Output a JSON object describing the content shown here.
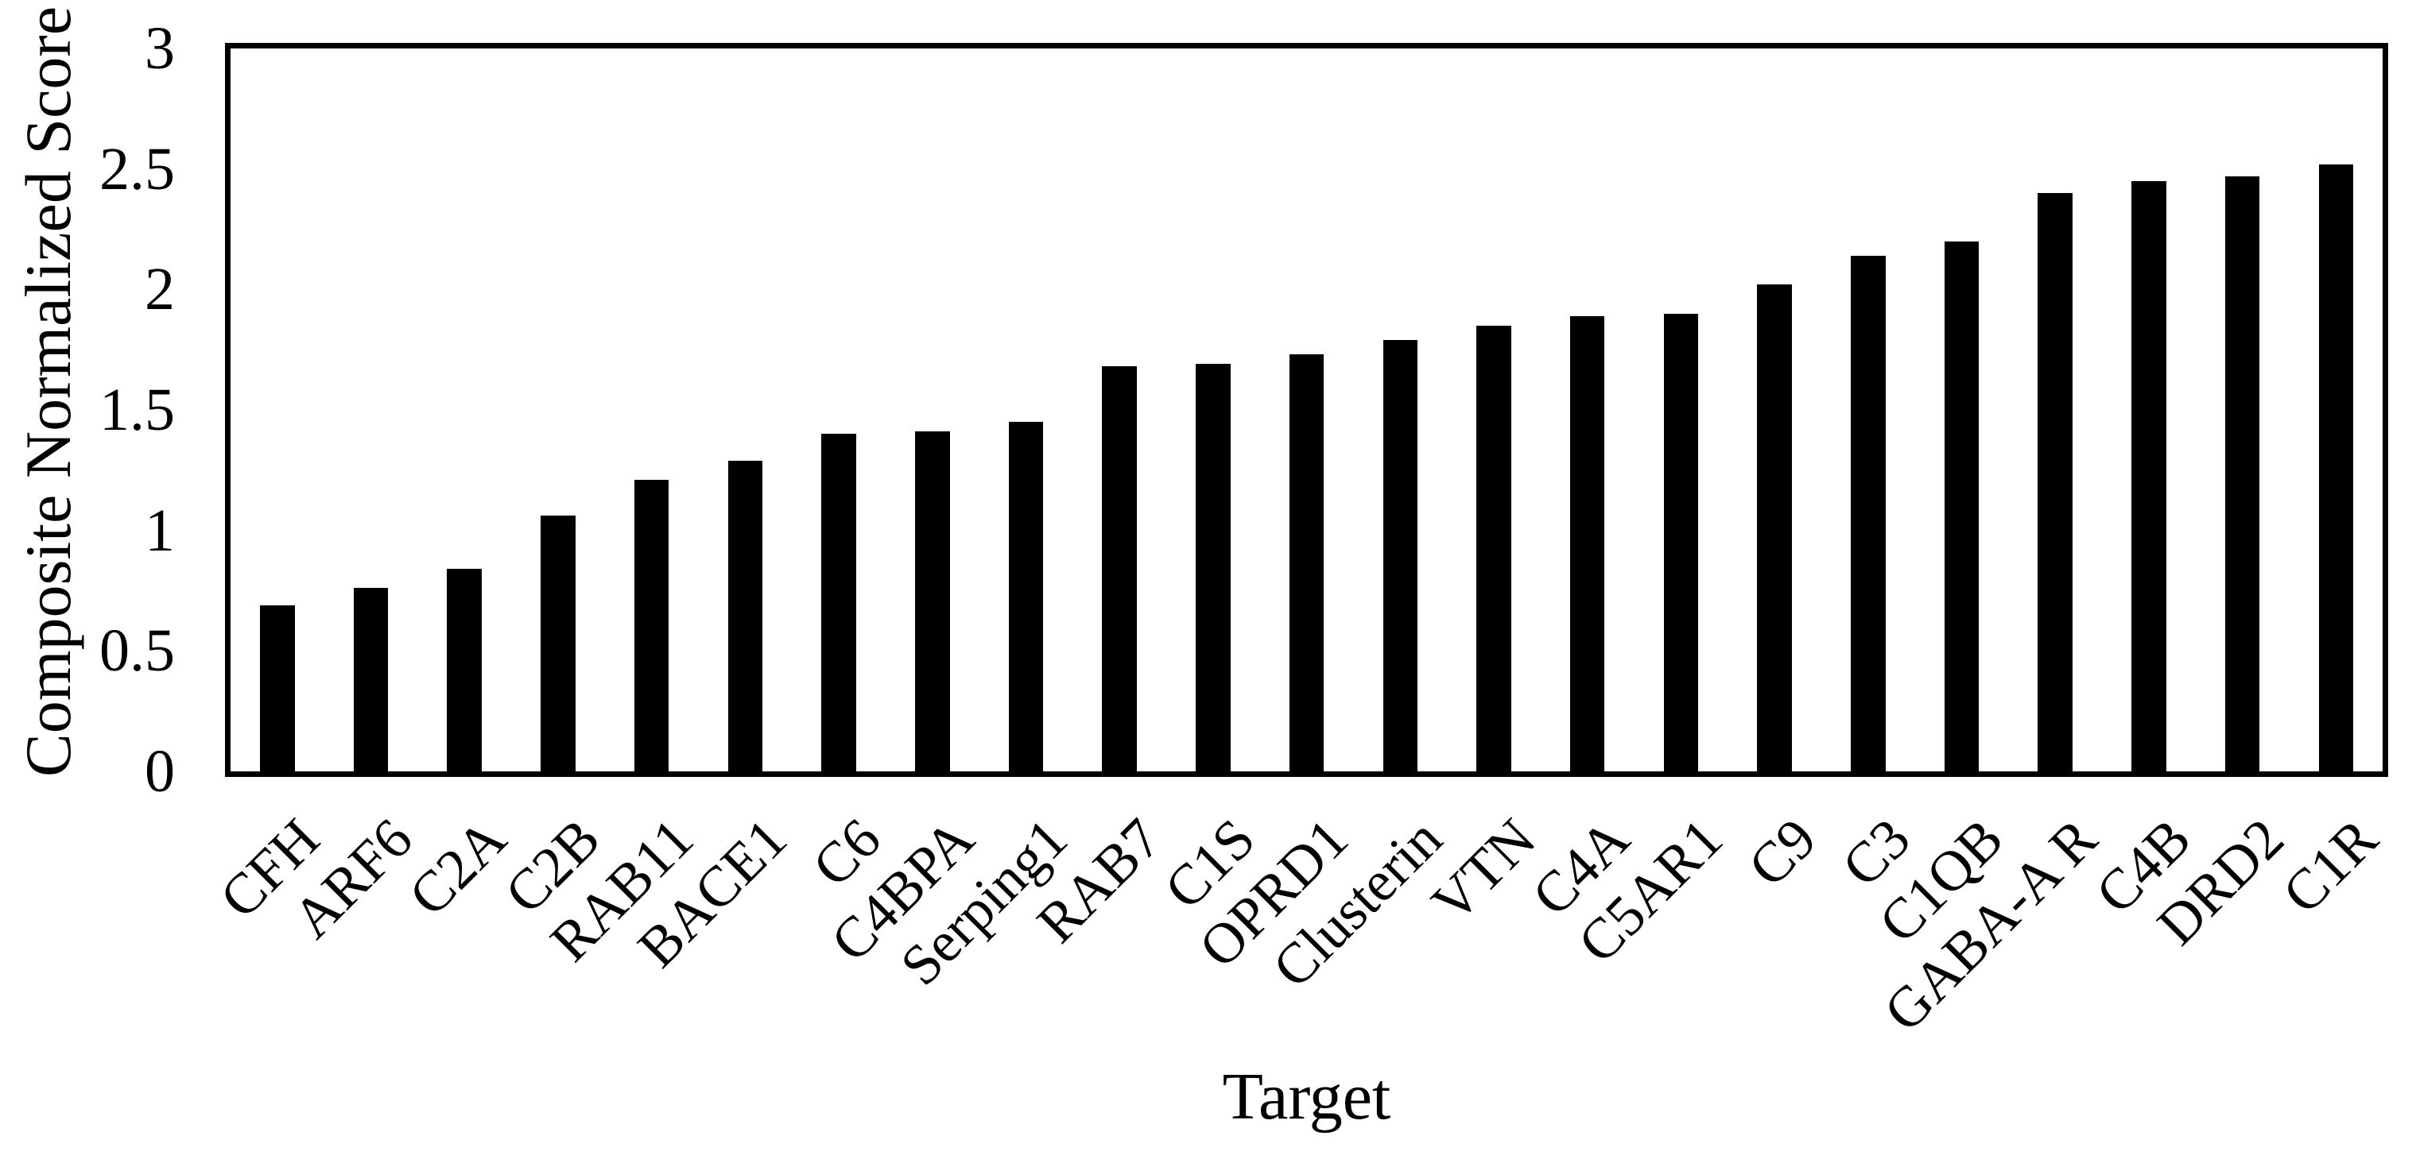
{
  "chart_data": {
    "type": "bar",
    "title": "",
    "xlabel": "Target",
    "ylabel": "Composite Normalized Score",
    "categories": [
      "CFH",
      "ARF6",
      "C2A",
      "C2B",
      "RAB11",
      "BACE1",
      "C6",
      "C4BPA",
      "Serping1",
      "RAB7",
      "C1S",
      "OPRD1",
      "Clusterin",
      "VTN",
      "C4A",
      "C5AR1",
      "C9",
      "C3",
      "C1QB",
      "GABA-A R",
      "C4B",
      "DRD2",
      "C1R"
    ],
    "values": [
      0.69,
      0.76,
      0.84,
      1.06,
      1.21,
      1.29,
      1.4,
      1.41,
      1.45,
      1.68,
      1.69,
      1.73,
      1.79,
      1.85,
      1.89,
      1.9,
      2.02,
      2.14,
      2.2,
      2.4,
      2.45,
      2.47,
      2.52
    ],
    "ylim": [
      0,
      3
    ],
    "yticks": [
      0,
      0.5,
      1,
      1.5,
      2,
      2.5,
      3
    ],
    "ytick_labels": [
      "0",
      "0.5",
      "1",
      "1.5",
      "2",
      "2.5",
      "3"
    ],
    "bar_color": "#000000",
    "axis_color": "#000000",
    "background_color": "#ffffff",
    "grid": false,
    "legend": "none",
    "bar_label_rotation_deg": 45
  }
}
